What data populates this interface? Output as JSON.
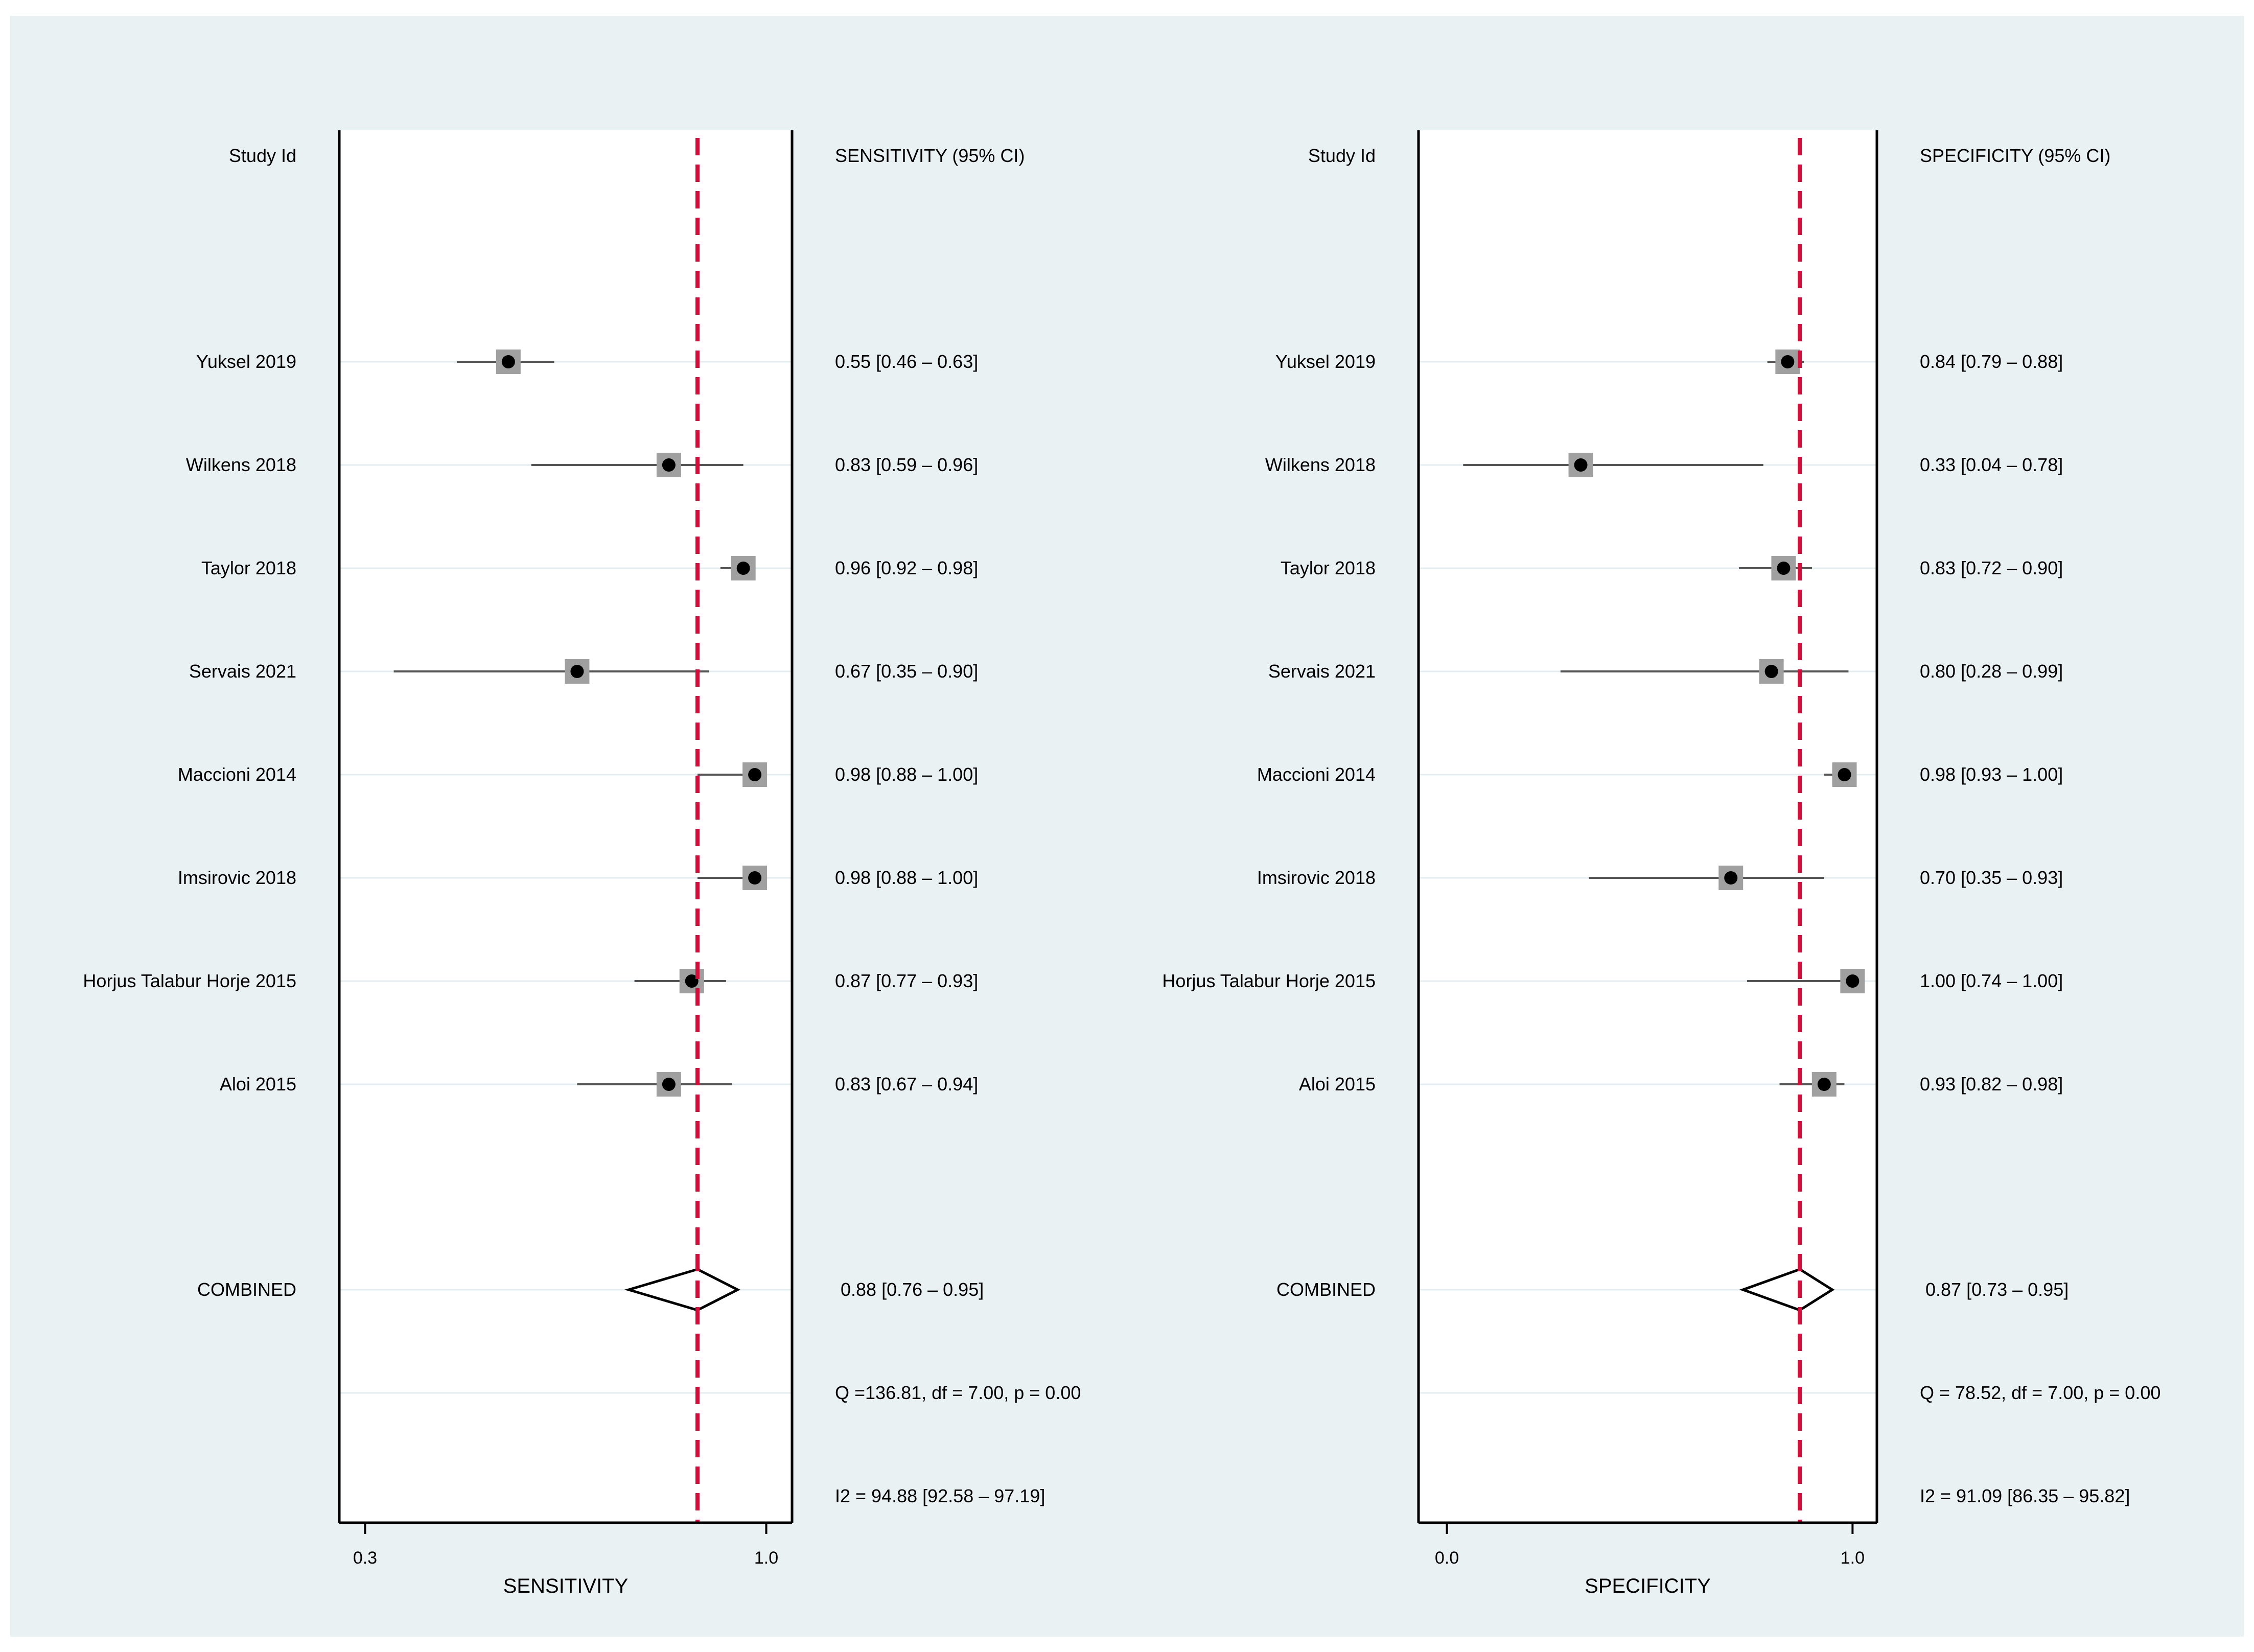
{
  "chart_data": [
    {
      "type": "forest",
      "metric_header": "SENSITIVITY (95% CI)",
      "study_header": "Study Id",
      "xlabel": "SENSITIVITY",
      "xticks": [
        {
          "value": 0.3,
          "label": "0.3"
        },
        {
          "value": 1.0,
          "label": "1.0"
        }
      ],
      "xlim": [
        0.255,
        1.045
      ],
      "pooled_line": 0.88,
      "studies": [
        {
          "name": "Yuksel 2019",
          "est": 0.55,
          "lo": 0.46,
          "hi": 0.63,
          "label": "0.55 [0.46 – 0.63]"
        },
        {
          "name": "Wilkens 2018",
          "est": 0.83,
          "lo": 0.59,
          "hi": 0.96,
          "label": "0.83 [0.59 – 0.96]"
        },
        {
          "name": "Taylor 2018",
          "est": 0.96,
          "lo": 0.92,
          "hi": 0.98,
          "label": "0.96 [0.92 – 0.98]"
        },
        {
          "name": "Servais 2021",
          "est": 0.67,
          "lo": 0.35,
          "hi": 0.9,
          "label": "0.67 [0.35 – 0.90]"
        },
        {
          "name": "Maccioni 2014",
          "est": 0.98,
          "lo": 0.88,
          "hi": 1.0,
          "label": "0.98 [0.88 – 1.00]"
        },
        {
          "name": "Imsirovic 2018",
          "est": 0.98,
          "lo": 0.88,
          "hi": 1.0,
          "label": "0.98 [0.88 – 1.00]"
        },
        {
          "name": "Horjus Talabur Horje 2015",
          "est": 0.87,
          "lo": 0.77,
          "hi": 0.93,
          "label": "0.87 [0.77 – 0.93]"
        },
        {
          "name": "Aloi 2015",
          "est": 0.83,
          "lo": 0.67,
          "hi": 0.94,
          "label": "0.83 [0.67 – 0.94]"
        }
      ],
      "combined": {
        "name": "COMBINED",
        "est": 0.88,
        "lo": 0.76,
        "hi": 0.95,
        "label": "0.88 [0.76 – 0.95]"
      },
      "q_stat": "Q =136.81, df = 7.00, p =  0.00",
      "i2": "I2 = 94.88 [92.58 – 97.19]"
    },
    {
      "type": "forest",
      "metric_header": "SPECIFICITY (95% CI)",
      "study_header": "Study Id",
      "xlabel": "SPECIFICITY",
      "xticks": [
        {
          "value": 0.0,
          "label": "0.0"
        },
        {
          "value": 1.0,
          "label": "1.0"
        }
      ],
      "xlim": [
        -0.07,
        1.06
      ],
      "pooled_line": 0.87,
      "studies": [
        {
          "name": "Yuksel 2019",
          "est": 0.84,
          "lo": 0.79,
          "hi": 0.88,
          "label": "0.84 [0.79 – 0.88]"
        },
        {
          "name": "Wilkens 2018",
          "est": 0.33,
          "lo": 0.04,
          "hi": 0.78,
          "label": "0.33 [0.04 – 0.78]"
        },
        {
          "name": "Taylor 2018",
          "est": 0.83,
          "lo": 0.72,
          "hi": 0.9,
          "label": "0.83 [0.72 – 0.90]"
        },
        {
          "name": "Servais 2021",
          "est": 0.8,
          "lo": 0.28,
          "hi": 0.99,
          "label": "0.80 [0.28 – 0.99]"
        },
        {
          "name": "Maccioni 2014",
          "est": 0.98,
          "lo": 0.93,
          "hi": 1.0,
          "label": "0.98 [0.93 – 1.00]"
        },
        {
          "name": "Imsirovic 2018",
          "est": 0.7,
          "lo": 0.35,
          "hi": 0.93,
          "label": "0.70 [0.35 – 0.93]"
        },
        {
          "name": "Horjus Talabur Horje 2015",
          "est": 1.0,
          "lo": 0.74,
          "hi": 1.0,
          "label": "1.00 [0.74 – 1.00]"
        },
        {
          "name": "Aloi 2015",
          "est": 0.93,
          "lo": 0.82,
          "hi": 0.98,
          "label": "0.93 [0.82 – 0.98]"
        }
      ],
      "combined": {
        "name": "COMBINED",
        "est": 0.87,
        "lo": 0.73,
        "hi": 0.95,
        "label": "0.87 [0.73 – 0.95]"
      },
      "q_stat": "Q = 78.52, df = 7.00, p =  0.00",
      "i2": "I2 = 91.09 [86.35 – 95.82]"
    }
  ],
  "colors": {
    "outer_background": "#eaf1f3",
    "plot_background": "#ffffff",
    "pooled_line": "#d0103a",
    "marker_box": "#a0a0a0",
    "marker_dot": "#000000",
    "row_guide": "#e3edf0",
    "axis": "#000000"
  }
}
